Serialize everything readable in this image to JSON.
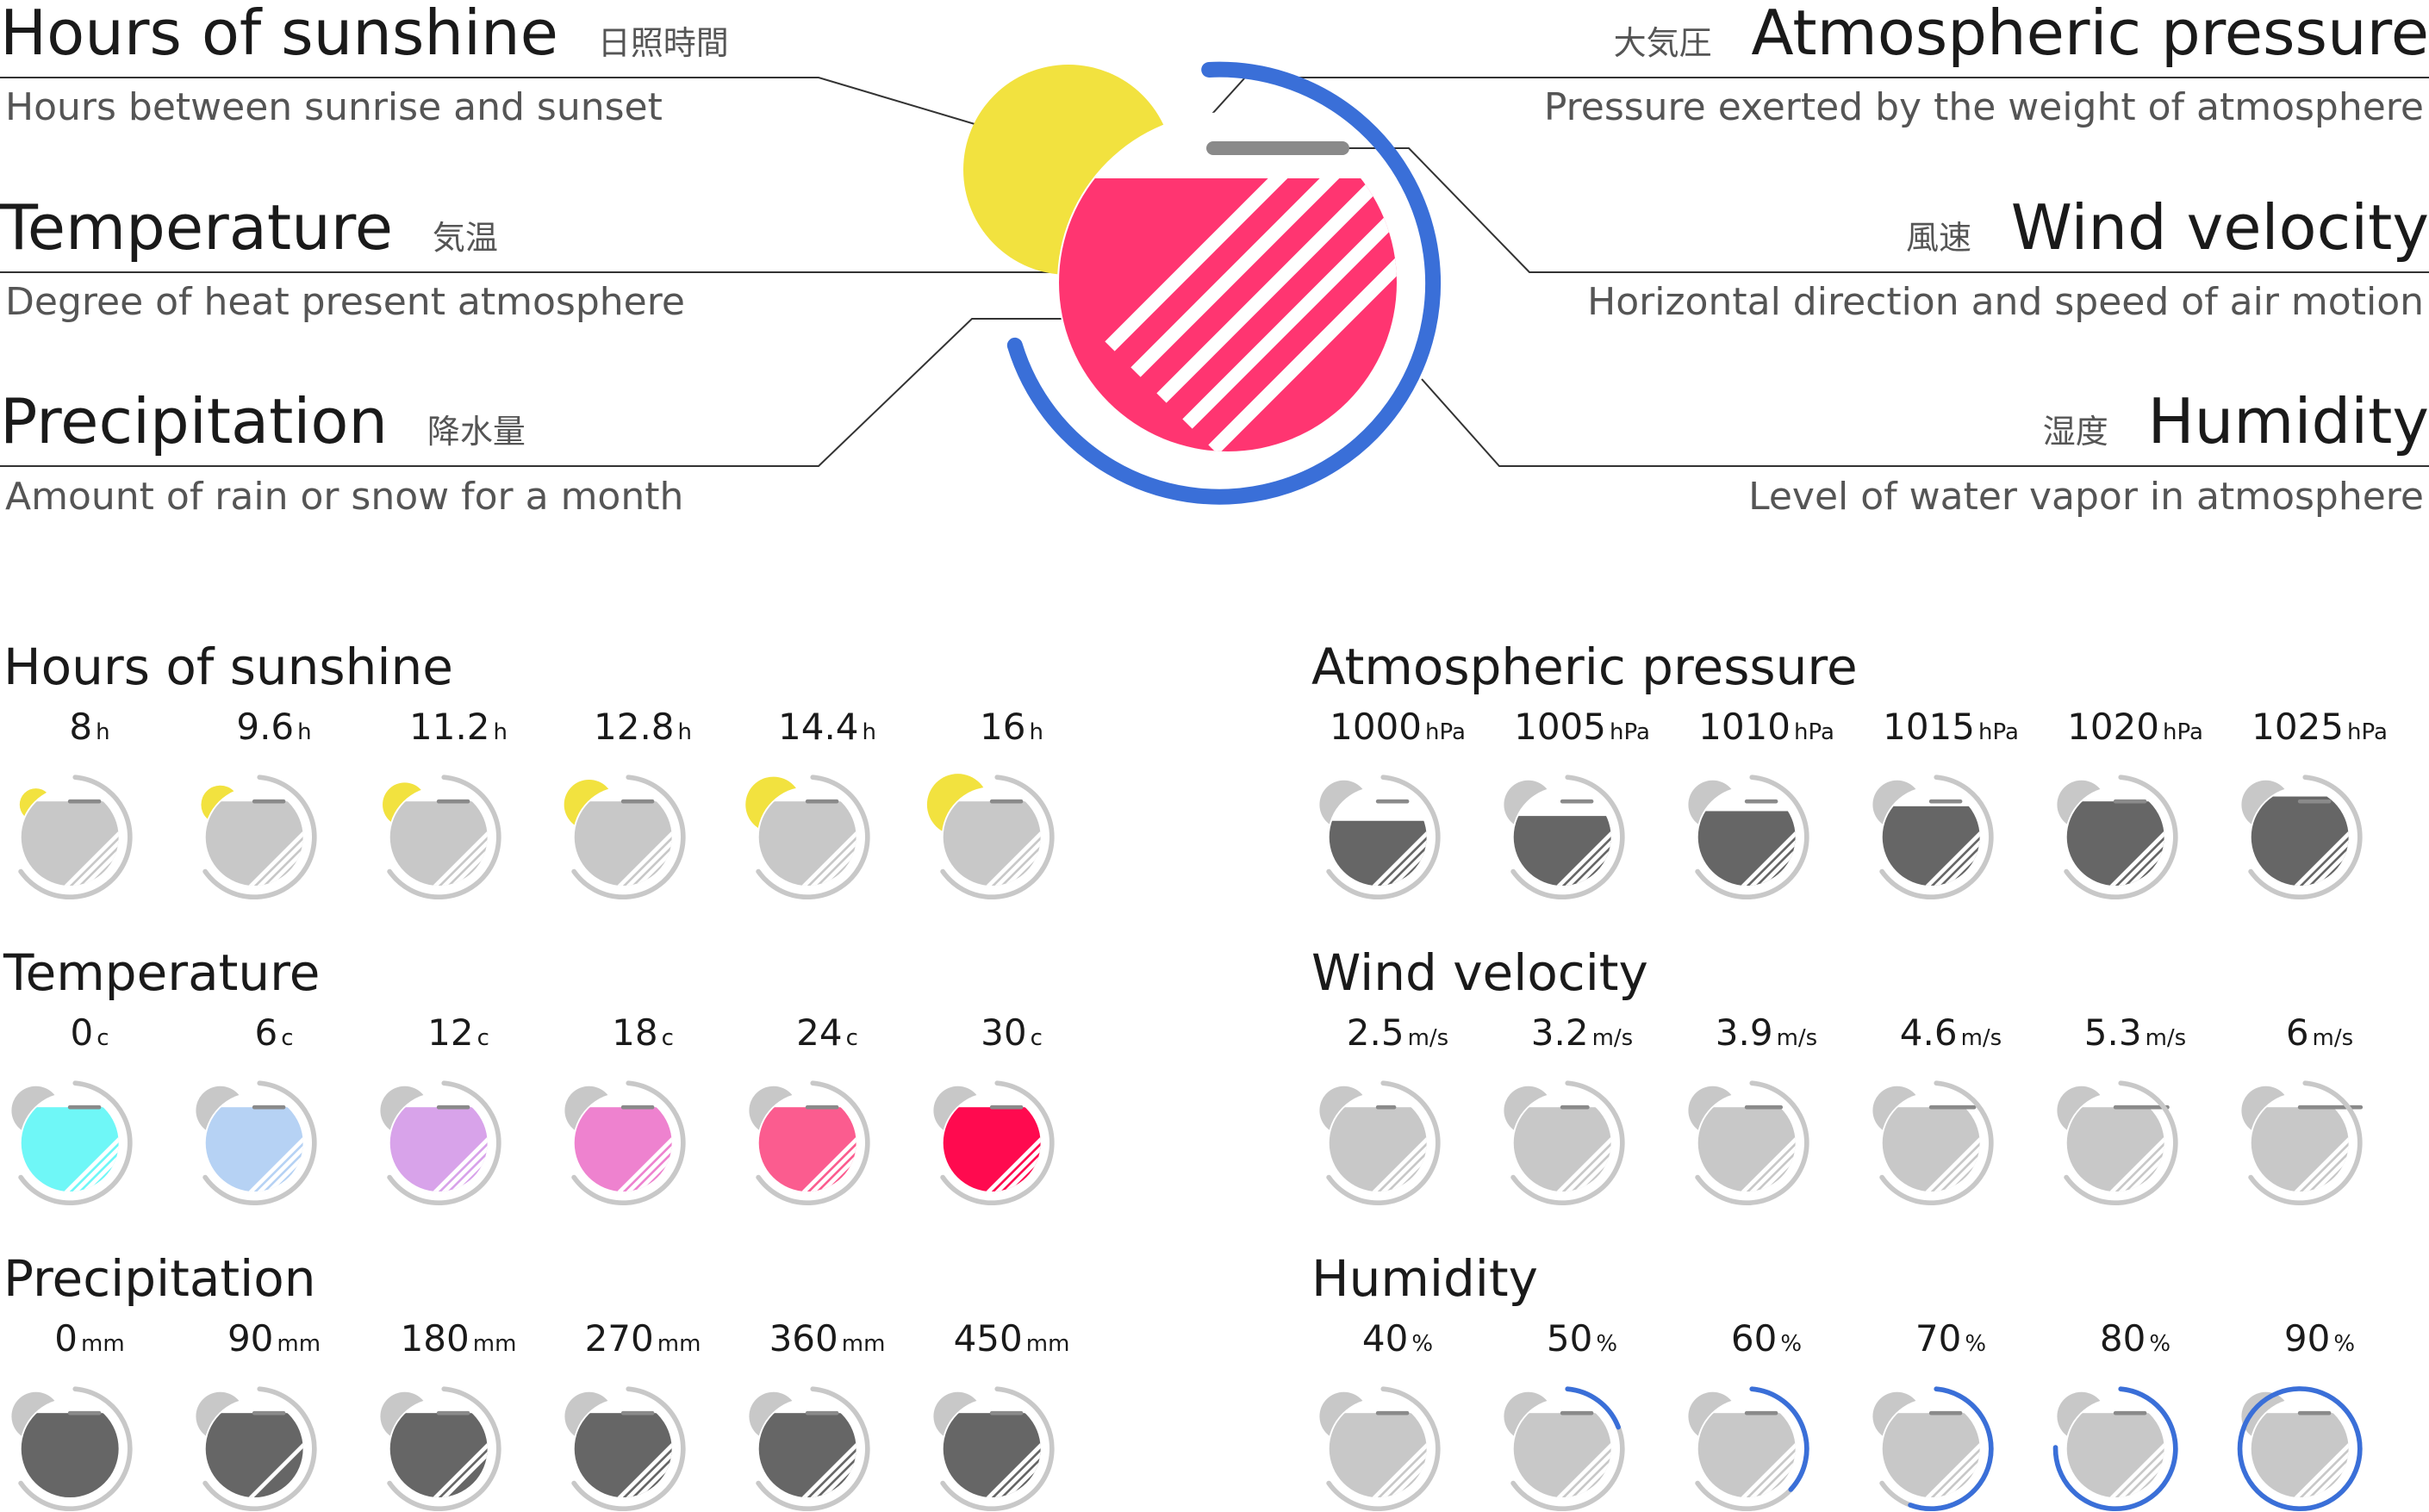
{
  "legend": {
    "sunshine": {
      "title": "Hours of sunshine",
      "jp": "日照時間",
      "desc": "Hours between sunrise and sunset"
    },
    "temperature": {
      "title": "Temperature",
      "jp": "気温",
      "desc": "Degree of heat present atmosphere"
    },
    "precipitation": {
      "title": "Precipitation",
      "jp": "降水量",
      "desc": "Amount of rain or snow for a month"
    },
    "pressure": {
      "title": "Atmospheric pressure",
      "jp": "大気圧",
      "desc": "Pressure exerted by the weight of atmosphere"
    },
    "wind": {
      "title": "Wind velocity",
      "jp": "風速",
      "desc": "Horizontal direction and speed of air motion"
    },
    "humidity": {
      "title": "Humidity",
      "jp": "湿度",
      "desc": "Level of water vapor in atmosphere"
    }
  },
  "colors": {
    "sun": "#f2e23f",
    "temp": "#ff3571",
    "humidity": "#3a6fd8",
    "gray_light": "#c8c8c8",
    "gray_dark": "#666666",
    "wind_bar": "#8a8a8a"
  },
  "panels": {
    "sunshine": {
      "title": "Hours of sunshine",
      "items": [
        {
          "value": "8",
          "unit": "h",
          "level": 0.0
        },
        {
          "value": "9.6",
          "unit": "h",
          "level": 0.2
        },
        {
          "value": "11.2",
          "unit": "h",
          "level": 0.4
        },
        {
          "value": "12.8",
          "unit": "h",
          "level": 0.6
        },
        {
          "value": "14.4",
          "unit": "h",
          "level": 0.8
        },
        {
          "value": "16",
          "unit": "h",
          "level": 1.0
        }
      ]
    },
    "temperature": {
      "title": "Temperature",
      "items": [
        {
          "value": "0",
          "unit": "c",
          "color": "#6ff7f7"
        },
        {
          "value": "6",
          "unit": "c",
          "color": "#b6d2f4"
        },
        {
          "value": "12",
          "unit": "c",
          "color": "#d8a3ea"
        },
        {
          "value": "18",
          "unit": "c",
          "color": "#ee82cf"
        },
        {
          "value": "24",
          "unit": "c",
          "color": "#fb5c8f"
        },
        {
          "value": "30",
          "unit": "c",
          "color": "#ff0a4f"
        }
      ]
    },
    "precipitation": {
      "title": "Precipitation",
      "items": [
        {
          "value": "0",
          "unit": "mm",
          "stripes": 0
        },
        {
          "value": "90",
          "unit": "mm",
          "stripes": 1
        },
        {
          "value": "180",
          "unit": "mm",
          "stripes": 2
        },
        {
          "value": "270",
          "unit": "mm",
          "stripes": 4
        },
        {
          "value": "360",
          "unit": "mm",
          "stripes": 6
        },
        {
          "value": "450",
          "unit": "mm",
          "stripes": 8
        }
      ]
    },
    "pressure": {
      "title": "Atmospheric pressure",
      "items": [
        {
          "value": "1000",
          "unit": "hPa",
          "level": 0.0
        },
        {
          "value": "1005",
          "unit": "hPa",
          "level": 0.2
        },
        {
          "value": "1010",
          "unit": "hPa",
          "level": 0.4
        },
        {
          "value": "1015",
          "unit": "hPa",
          "level": 0.6
        },
        {
          "value": "1020",
          "unit": "hPa",
          "level": 0.8
        },
        {
          "value": "1025",
          "unit": "hPa",
          "level": 1.0
        }
      ]
    },
    "wind": {
      "title": "Wind velocity",
      "items": [
        {
          "value": "2.5",
          "unit": "m/s",
          "level": 0.0
        },
        {
          "value": "3.2",
          "unit": "m/s",
          "level": 0.2
        },
        {
          "value": "3.9",
          "unit": "m/s",
          "level": 0.4
        },
        {
          "value": "4.6",
          "unit": "m/s",
          "level": 0.6
        },
        {
          "value": "5.3",
          "unit": "m/s",
          "level": 0.8
        },
        {
          "value": "6",
          "unit": "m/s",
          "level": 1.0
        }
      ]
    },
    "humidity": {
      "title": "Humidity",
      "items": [
        {
          "value": "40",
          "unit": "%",
          "fraction": 0.0
        },
        {
          "value": "50",
          "unit": "%",
          "fraction": 0.18
        },
        {
          "value": "60",
          "unit": "%",
          "fraction": 0.36
        },
        {
          "value": "70",
          "unit": "%",
          "fraction": 0.55
        },
        {
          "value": "80",
          "unit": "%",
          "fraction": 0.75
        },
        {
          "value": "90",
          "unit": "%",
          "fraction": 1.0
        }
      ]
    }
  }
}
